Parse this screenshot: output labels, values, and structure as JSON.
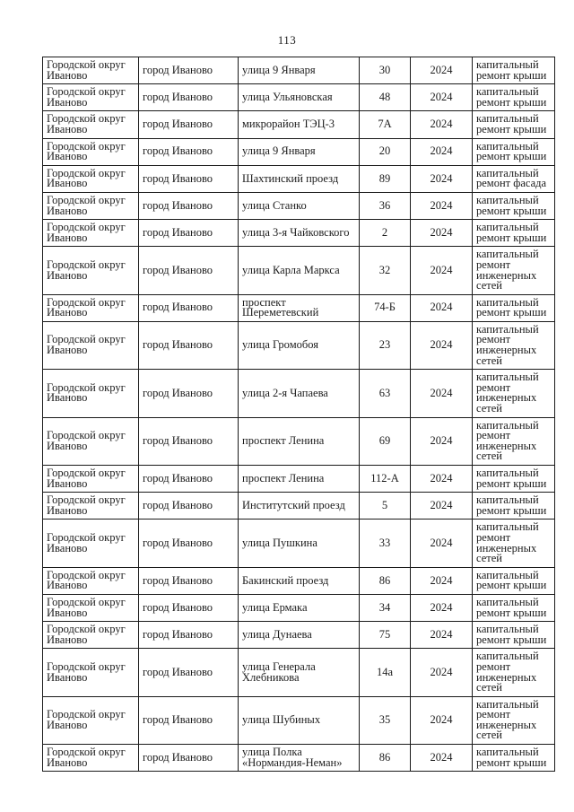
{
  "page": {
    "number": "113"
  },
  "table": {
    "rows": [
      {
        "district": "Городской округ Иваново",
        "city": "город Иваново",
        "street": "улица 9 Января",
        "house": "30",
        "year": "2024",
        "work": "капитальный ремонт крыши"
      },
      {
        "district": "Городской округ Иваново",
        "city": "город Иваново",
        "street": "улица Ульяновская",
        "house": "48",
        "year": "2024",
        "work": "капитальный ремонт крыши"
      },
      {
        "district": "Городской округ Иваново",
        "city": "город Иваново",
        "street": "микрорайон ТЭЦ-3",
        "house": "7А",
        "year": "2024",
        "work": "капитальный ремонт крыши"
      },
      {
        "district": "Городской округ Иваново",
        "city": "город Иваново",
        "street": "улица 9 Января",
        "house": "20",
        "year": "2024",
        "work": "капитальный ремонт крыши"
      },
      {
        "district": "Городской округ Иваново",
        "city": "город Иваново",
        "street": "Шахтинский проезд",
        "house": "89",
        "year": "2024",
        "work": "капитальный ремонт фасада"
      },
      {
        "district": "Городской округ Иваново",
        "city": "город Иваново",
        "street": "улица Станко",
        "house": "36",
        "year": "2024",
        "work": "капитальный ремонт крыши"
      },
      {
        "district": "Городской округ Иваново",
        "city": "город Иваново",
        "street": "улица 3-я Чайковского",
        "house": "2",
        "year": "2024",
        "work": "капитальный ремонт крыши"
      },
      {
        "district": "Городской округ Иваново",
        "city": "город Иваново",
        "street": "улица Карла Маркса",
        "house": "32",
        "year": "2024",
        "work": "капитальный ремонт инженерных сетей"
      },
      {
        "district": "Городской округ Иваново",
        "city": "город Иваново",
        "street": "проспект Шереметевский",
        "house": "74-Б",
        "year": "2024",
        "work": "капитальный ремонт крыши"
      },
      {
        "district": "Городской округ Иваново",
        "city": "город Иваново",
        "street": "улица Громобоя",
        "house": "23",
        "year": "2024",
        "work": "капитальный ремонт инженерных сетей"
      },
      {
        "district": "Городской округ Иваново",
        "city": "город Иваново",
        "street": "улица 2-я Чапаева",
        "house": "63",
        "year": "2024",
        "work": "капитальный ремонт инженерных сетей"
      },
      {
        "district": "Городской округ Иваново",
        "city": "город Иваново",
        "street": "проспект Ленина",
        "house": "69",
        "year": "2024",
        "work": "капитальный ремонт инженерных сетей"
      },
      {
        "district": "Городской округ Иваново",
        "city": "город Иваново",
        "street": "проспект Ленина",
        "house": "112-А",
        "year": "2024",
        "work": "капитальный ремонт крыши"
      },
      {
        "district": "Городской округ Иваново",
        "city": "город Иваново",
        "street": "Институтский проезд",
        "house": "5",
        "year": "2024",
        "work": "капитальный ремонт крыши"
      },
      {
        "district": "Городской округ Иваново",
        "city": "город Иваново",
        "street": "улица Пушкина",
        "house": "33",
        "year": "2024",
        "work": "капитальный ремонт инженерных сетей"
      },
      {
        "district": "Городской округ Иваново",
        "city": "город Иваново",
        "street": "Бакинский проезд",
        "house": "86",
        "year": "2024",
        "work": "капитальный ремонт крыши"
      },
      {
        "district": "Городской округ Иваново",
        "city": "город Иваново",
        "street": "улица Ермака",
        "house": "34",
        "year": "2024",
        "work": "капитальный ремонт крыши"
      },
      {
        "district": "Городской округ Иваново",
        "city": "город Иваново",
        "street": "улица Дунаева",
        "house": "75",
        "year": "2024",
        "work": "капитальный ремонт крыши"
      },
      {
        "district": "Городской округ Иваново",
        "city": "город Иваново",
        "street": "улица Генерала Хлебникова",
        "house": "14а",
        "year": "2024",
        "work": "капитальный ремонт инженерных сетей"
      },
      {
        "district": "Городской округ Иваново",
        "city": "город Иваново",
        "street": "улица Шубиных",
        "house": "35",
        "year": "2024",
        "work": "капитальный ремонт инженерных сетей"
      },
      {
        "district": "Городской округ Иваново",
        "city": "город Иваново",
        "street": "улица Полка «Нормандия-Неман»",
        "house": "86",
        "year": "2024",
        "work": "капитальный ремонт крыши"
      }
    ]
  }
}
